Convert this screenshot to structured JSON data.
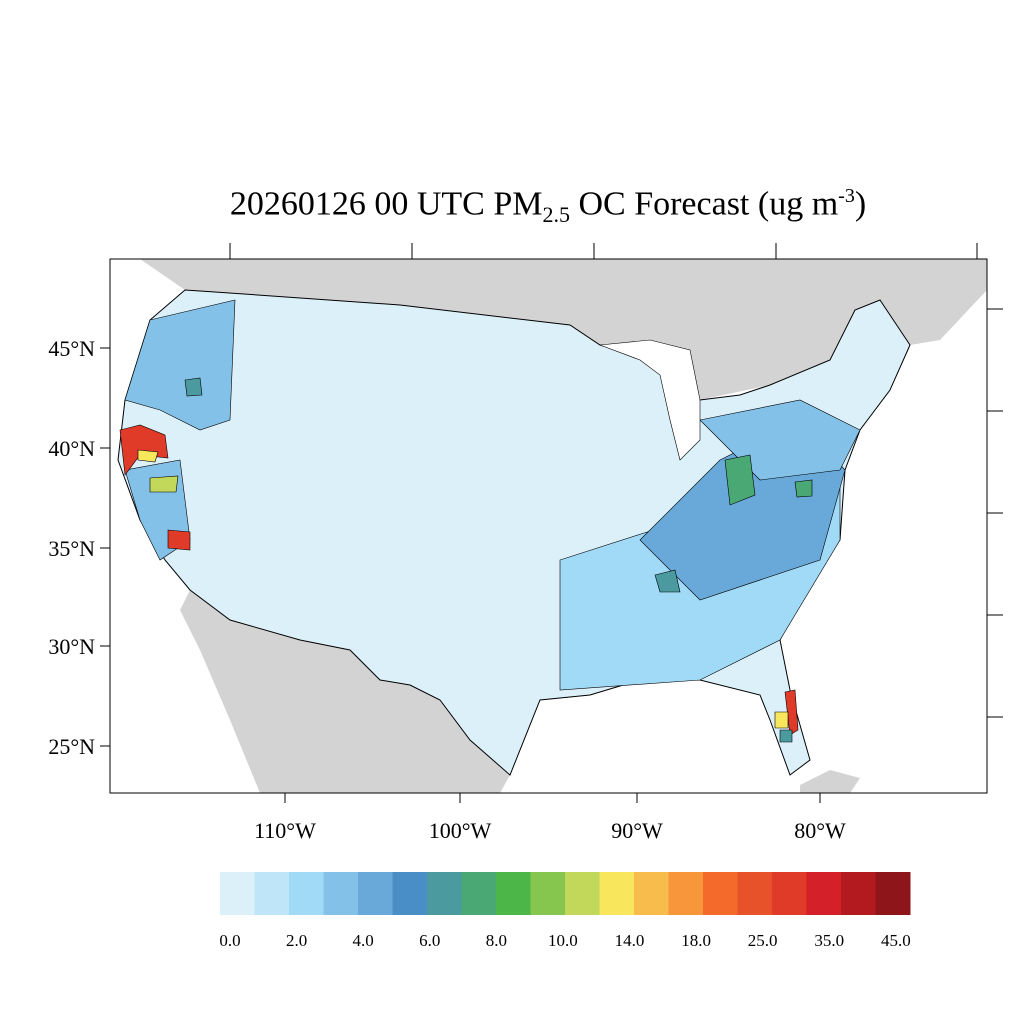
{
  "title": {
    "prefix": "20260126 00 UTC PM",
    "sub": "2.5",
    "middle": " OC Forecast (ug m",
    "sup": "-3",
    "suffix": ")"
  },
  "lat_labels": [
    "45°N",
    "40°N",
    "35°N",
    "30°N",
    "25°N"
  ],
  "lon_labels": [
    "110°W",
    "100°W",
    "90°W",
    "80°W"
  ],
  "colorbar": {
    "colors": [
      "#dcf0fa",
      "#bfe6f8",
      "#a0daf6",
      "#84c1e8",
      "#68a9da",
      "#4a8ec8",
      "#4a9aa0",
      "#4aa874",
      "#4cb648",
      "#86c64e",
      "#c2d85a",
      "#f8e65c",
      "#f8bc4c",
      "#f8963c",
      "#f46a2a",
      "#e8522a",
      "#e03a28",
      "#d42028",
      "#b21a20",
      "#8e161a"
    ],
    "labels": [
      "0.0",
      "2.0",
      "4.0",
      "6.0",
      "8.0",
      "10.0",
      "14.0",
      "18.0",
      "25.0",
      "35.0",
      "45.0"
    ]
  },
  "map": {
    "land_outside_color": "#d3d3d3",
    "water_color": "#ffffff",
    "county_border_color": "#000000"
  }
}
